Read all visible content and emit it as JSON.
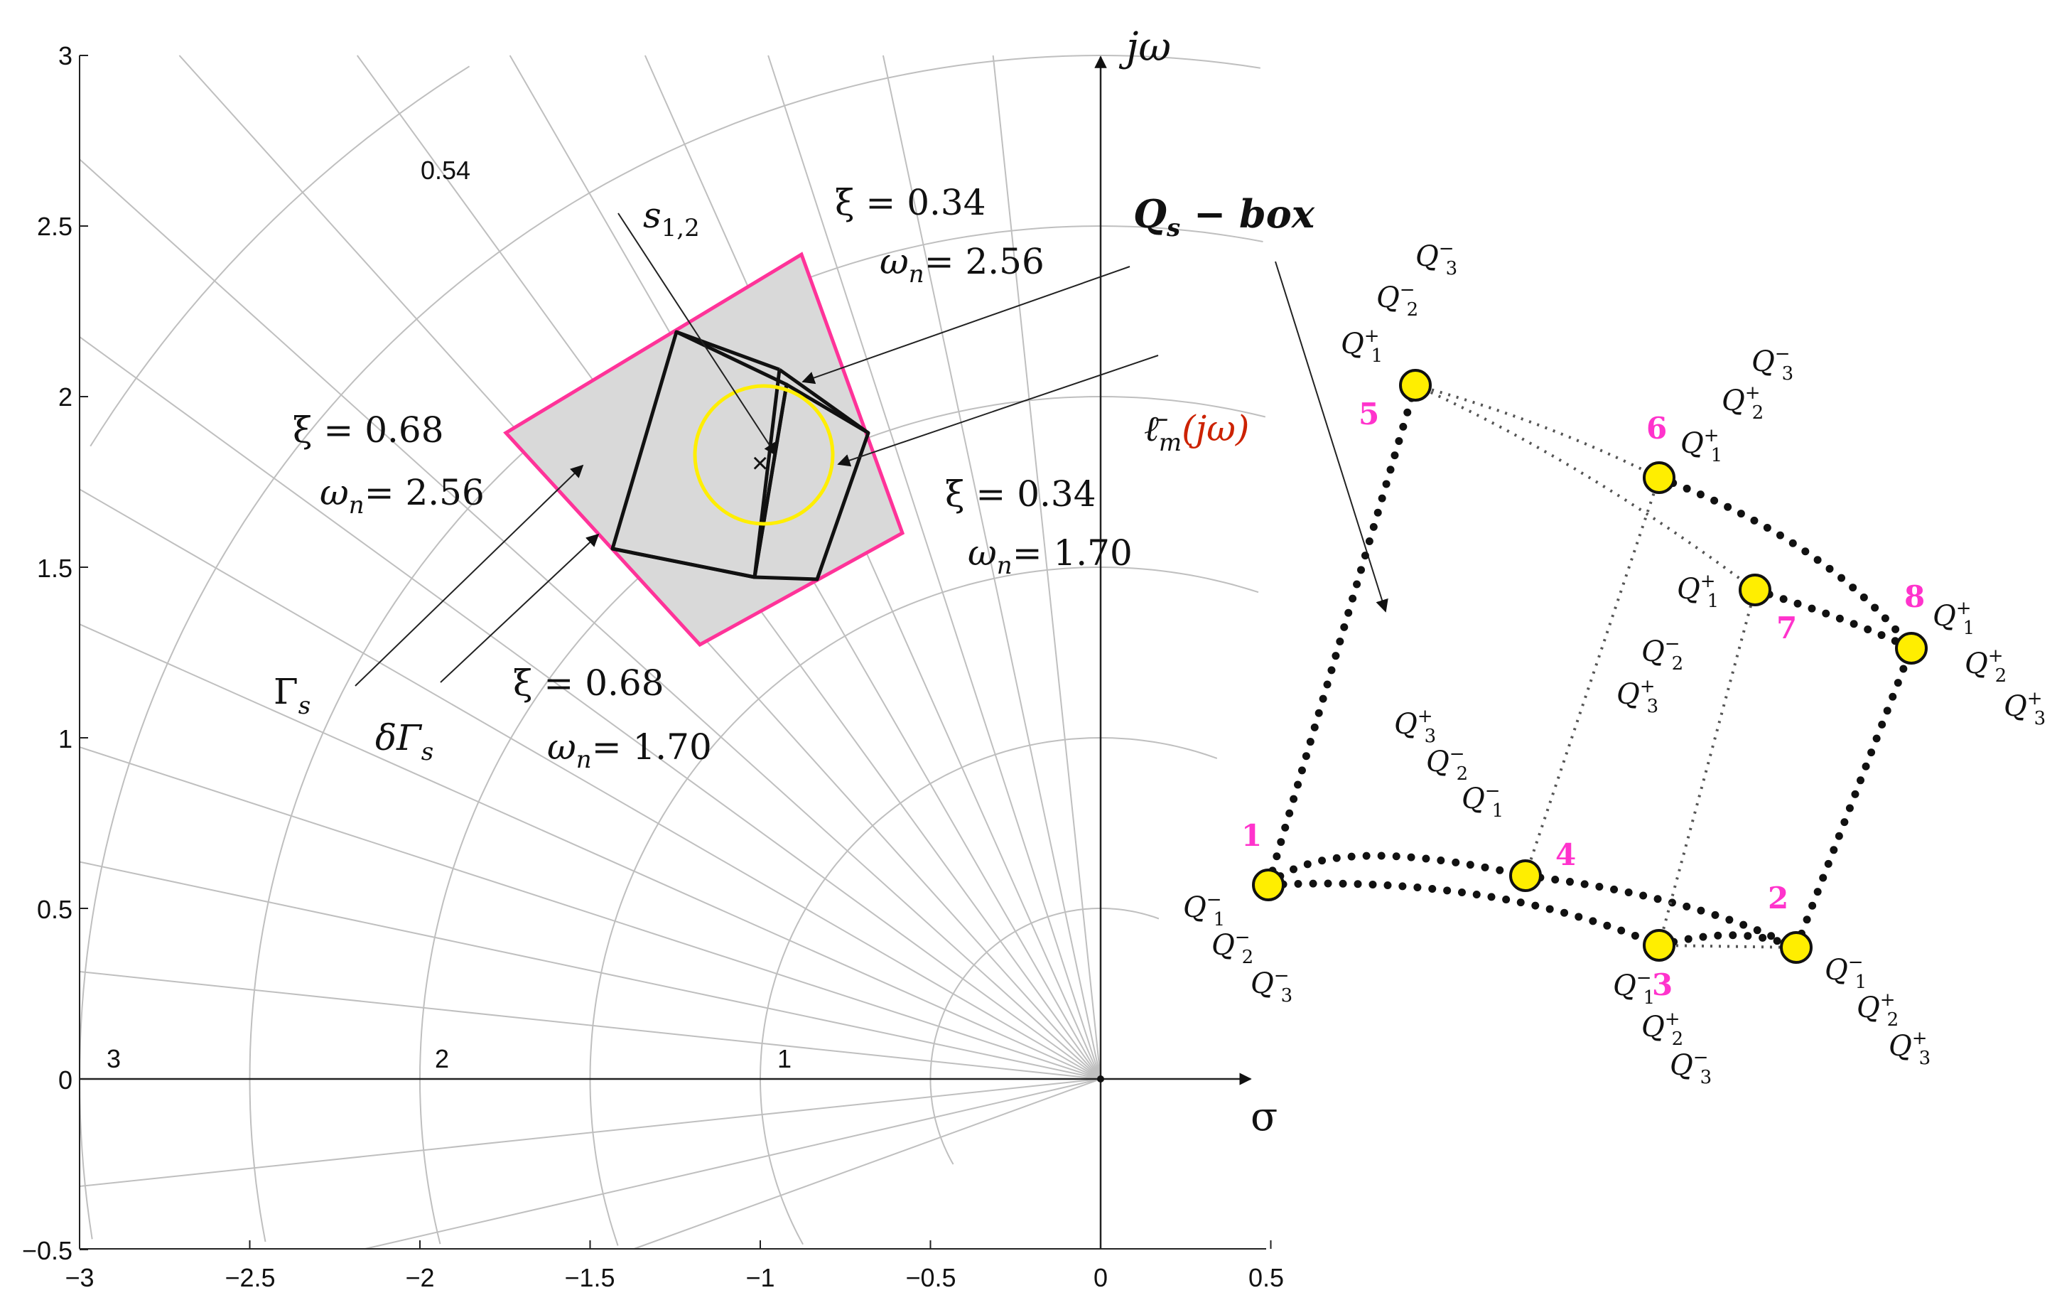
{
  "axes": {
    "x_ticks": [
      "−3",
      "−2.5",
      "−2",
      "−1.5",
      "−1",
      "−0.5",
      "0",
      "0.5"
    ],
    "y_ticks": [
      "−0.5",
      "0",
      "0.5",
      "1",
      "1.5",
      "2",
      "2.5",
      "3"
    ],
    "xlim": [
      -3,
      0.5
    ],
    "ylim": [
      -0.5,
      3
    ],
    "sigma_label": "σ",
    "jomega_label": "jω"
  },
  "grid": {
    "radius_labels": [
      "3",
      "2",
      "1"
    ],
    "damping_label": "0.54"
  },
  "annotations": {
    "s12": "s",
    "s12_sub": "1,2",
    "xi_a": "ξ = 0.34",
    "wn_a_sym": "ω",
    "wn_a_sub": "n",
    "wn_a_val": "= 2.56",
    "xi_b": "ξ = 0.68",
    "wn_b_val": "= 2.56",
    "xi_c": "ξ = 0.34",
    "wn_c_val": "= 1.70",
    "xi_d": "ξ = 0.68",
    "wn_d_val": "= 1.70",
    "gamma_s": "Γ",
    "gamma_sub": "s",
    "dgamma_s": "δΓ",
    "dgamma_sub": "s",
    "qs_box_Q": "Q",
    "qs_box_sub": "s",
    "qs_box_rest": " − box",
    "lm_l": "ℓ̄",
    "lm_sub": "m",
    "lm_rest": "(jω)"
  },
  "qbox": {
    "vertices": [
      {
        "num": "1",
        "labels": [
          "Q1−",
          "Q2−",
          "Q3−"
        ]
      },
      {
        "num": "2",
        "labels": [
          "Q1−",
          "Q2+",
          "Q3+"
        ]
      },
      {
        "num": "3",
        "labels": [
          "Q1−",
          "Q2+",
          "Q3−"
        ]
      },
      {
        "num": "4",
        "labels": [
          "Q1−",
          "Q2−",
          "Q3+"
        ]
      },
      {
        "num": "5",
        "labels": [
          "Q1+",
          "Q2−",
          "Q3−"
        ]
      },
      {
        "num": "6",
        "labels": [
          "Q1+",
          "Q2+",
          "Q3−"
        ]
      },
      {
        "num": "7",
        "labels": [
          "Q1+",
          "Q2−",
          "Q3+"
        ]
      },
      {
        "num": "8",
        "labels": [
          "Q1+",
          "Q2+",
          "Q3+"
        ]
      }
    ]
  },
  "colors": {
    "region_fill": "#d9d9d9",
    "region_border": "#ff3399",
    "circle": "#ffee00",
    "vertex_fill": "#ffee00",
    "vertex_number": "#ff33cc",
    "lm_highlight": "#cc2200"
  }
}
